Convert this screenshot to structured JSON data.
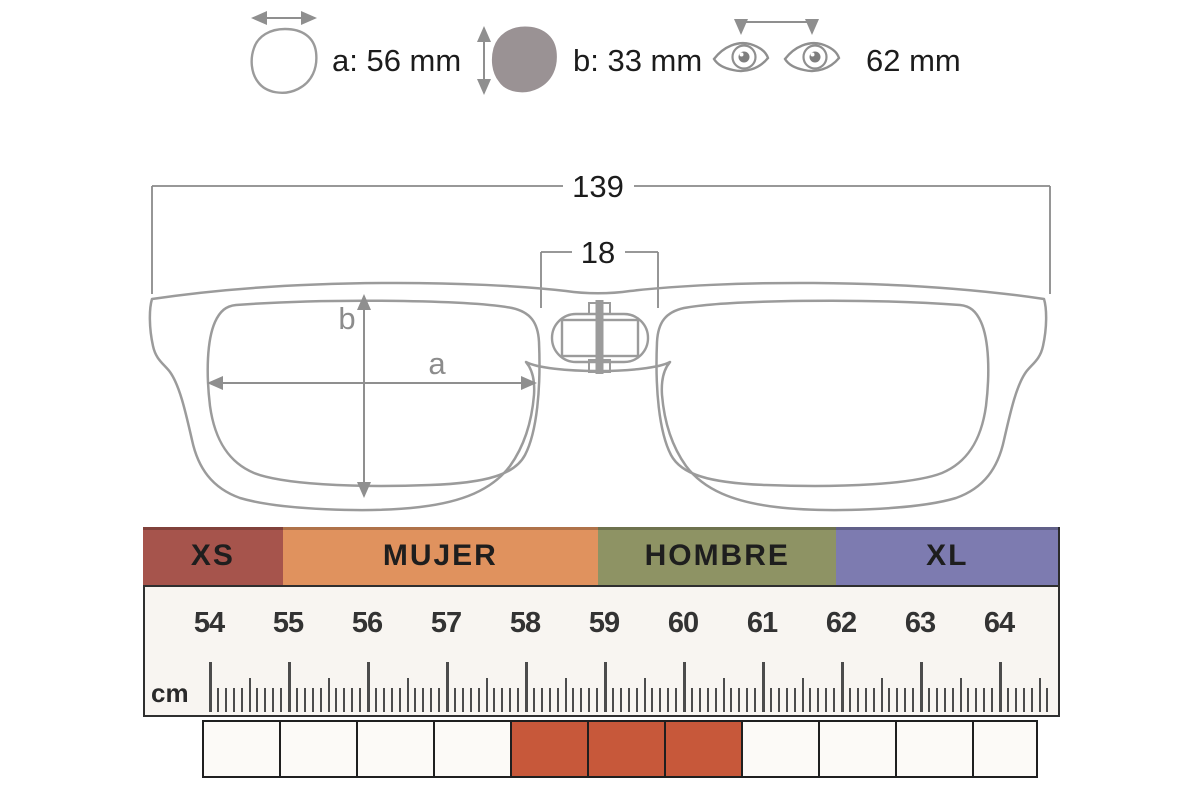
{
  "legend": {
    "lens_width_label": "a: 56 mm",
    "lens_height_label": "b: 33 mm",
    "pupillary_distance_label": "62 mm"
  },
  "glasses_dimensions": {
    "total_width_mm": "139",
    "bridge_width_mm": "18",
    "lens_width_letter": "a",
    "lens_height_letter": "b"
  },
  "size_bands": [
    {
      "label": "XS",
      "color": "#a6544c",
      "range_cm": "54-55"
    },
    {
      "label": "MUJER",
      "color": "#e0925e",
      "range_cm": "55-59"
    },
    {
      "label": "HOMBRE",
      "color": "#8e9364",
      "range_cm": "59-62"
    },
    {
      "label": "XL",
      "color": "#7d7bb0",
      "range_cm": "62-64+"
    }
  ],
  "ruler": {
    "unit_label": "cm",
    "numbers": [
      "54",
      "55",
      "56",
      "57",
      "58",
      "59",
      "60",
      "61",
      "62",
      "63",
      "64"
    ]
  },
  "size_cells": {
    "count": 11,
    "highlighted_indices": [
      4,
      5,
      6
    ],
    "highlight_color": "#c7583a",
    "highlighted_range_cm": "58-61"
  },
  "colors": {
    "frame_outline": "#9b9b9b",
    "dimension_lines": "#8f8f8f",
    "lens_fill": "#9a9294",
    "text_dark": "#1c1c1c",
    "ruler_background": "#f8f5f1",
    "tick": "#4c4c4c"
  }
}
